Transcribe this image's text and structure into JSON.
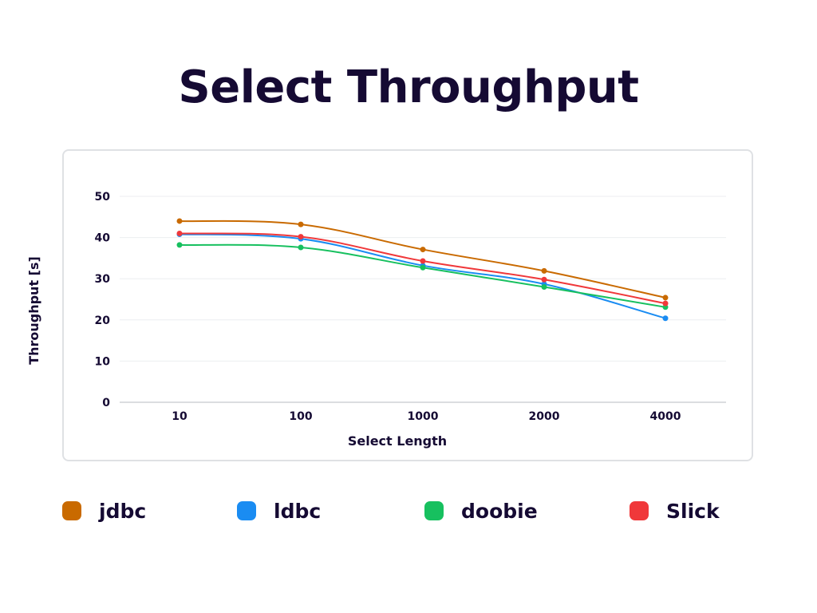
{
  "page": {
    "title": "Select Throughput"
  },
  "chart_data": {
    "type": "line",
    "title": "Select Throughput",
    "xlabel": "Select Length",
    "ylabel": "Throughput [s]",
    "categories": [
      "10",
      "100",
      "1000",
      "2000",
      "4000"
    ],
    "ylim": [
      0,
      50
    ],
    "yticks": [
      "0",
      "10",
      "20",
      "30",
      "40",
      "50"
    ],
    "grid": true,
    "legend_position": "bottom",
    "series": [
      {
        "name": "jdbc",
        "color": "#c96a00",
        "values": [
          44,
          43.2,
          37.1,
          31.9,
          25.4
        ]
      },
      {
        "name": "ldbc",
        "color": "#1a8cf2",
        "values": [
          40.8,
          39.7,
          33.2,
          28.7,
          20.4
        ]
      },
      {
        "name": "doobie",
        "color": "#17c05f",
        "values": [
          38.2,
          37.6,
          32.7,
          28.0,
          23.1
        ]
      },
      {
        "name": "Slick",
        "color": "#f0383a",
        "values": [
          41.0,
          40.2,
          34.3,
          29.8,
          24.0
        ]
      }
    ]
  }
}
